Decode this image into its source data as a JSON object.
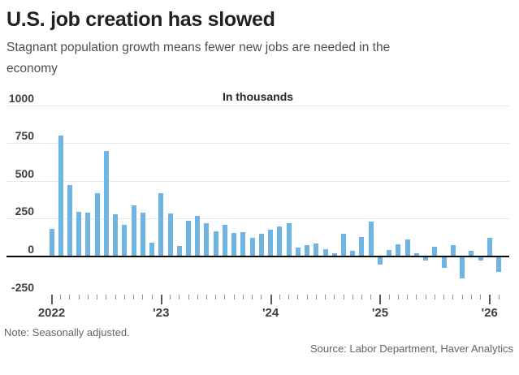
{
  "header": {
    "title": "U.S. job creation has slowed",
    "subtitle": "Stagnant population growth means fewer new jobs are needed in the economy"
  },
  "chart_data": {
    "type": "bar",
    "title": "U.S. job creation has slowed",
    "subtitle": "Stagnant population growth means fewer new jobs are needed in the economy",
    "unit_label": "In thousands",
    "xlabel": "",
    "ylabel": "In thousands",
    "ylim": [
      -250,
      1000
    ],
    "yticks": [
      1000,
      750,
      500,
      250,
      0,
      -250
    ],
    "xtick_labels": [
      "2022",
      "'23",
      "'24",
      "'25",
      "'26"
    ],
    "grid": true,
    "legend": "none",
    "x": [
      "Jan 2022",
      "Feb 2022",
      "Mar 2022",
      "Apr 2022",
      "May 2022",
      "Jun 2022",
      "Jul 2022",
      "Aug 2022",
      "Sep 2022",
      "Oct 2022",
      "Nov 2022",
      "Dec 2022",
      "Jan 2023",
      "Feb 2023",
      "Mar 2023",
      "Apr 2023",
      "May 2023",
      "Jun 2023",
      "Jul 2023",
      "Aug 2023",
      "Sep 2023",
      "Oct 2023",
      "Nov 2023",
      "Dec 2023",
      "Jan 2024",
      "Feb 2024",
      "Mar 2024",
      "Apr 2024",
      "May 2024",
      "Jun 2024",
      "Jul 2024",
      "Aug 2024",
      "Sep 2024",
      "Oct 2024",
      "Nov 2024",
      "Dec 2024",
      "Jan 2025",
      "Feb 2025",
      "Mar 2025",
      "Apr 2025",
      "May 2025",
      "Jun 2025",
      "Jul 2025",
      "Aug 2025",
      "Sep 2025",
      "Oct 2025",
      "Nov 2025",
      "Dec 2025",
      "Jan 2026",
      "Feb 2026"
    ],
    "values": [
      180,
      800,
      470,
      295,
      290,
      420,
      700,
      280,
      210,
      340,
      290,
      90,
      420,
      285,
      70,
      235,
      270,
      220,
      165,
      210,
      155,
      160,
      125,
      150,
      175,
      200,
      220,
      60,
      75,
      85,
      50,
      20,
      150,
      35,
      130,
      230,
      -50,
      45,
      80,
      110,
      20,
      -20,
      65,
      -70,
      75,
      -140,
      40,
      -20,
      125,
      -95
    ],
    "colors": {
      "bar": "#6FB5E4",
      "grid": "#e8e6e4",
      "zero_line": "#0a0a0a",
      "axis_text": "#3e3e3e"
    }
  },
  "footer": {
    "note": "Note: Seasonally adjusted.",
    "source": "Source: Labor Department, Haver Analytics"
  }
}
